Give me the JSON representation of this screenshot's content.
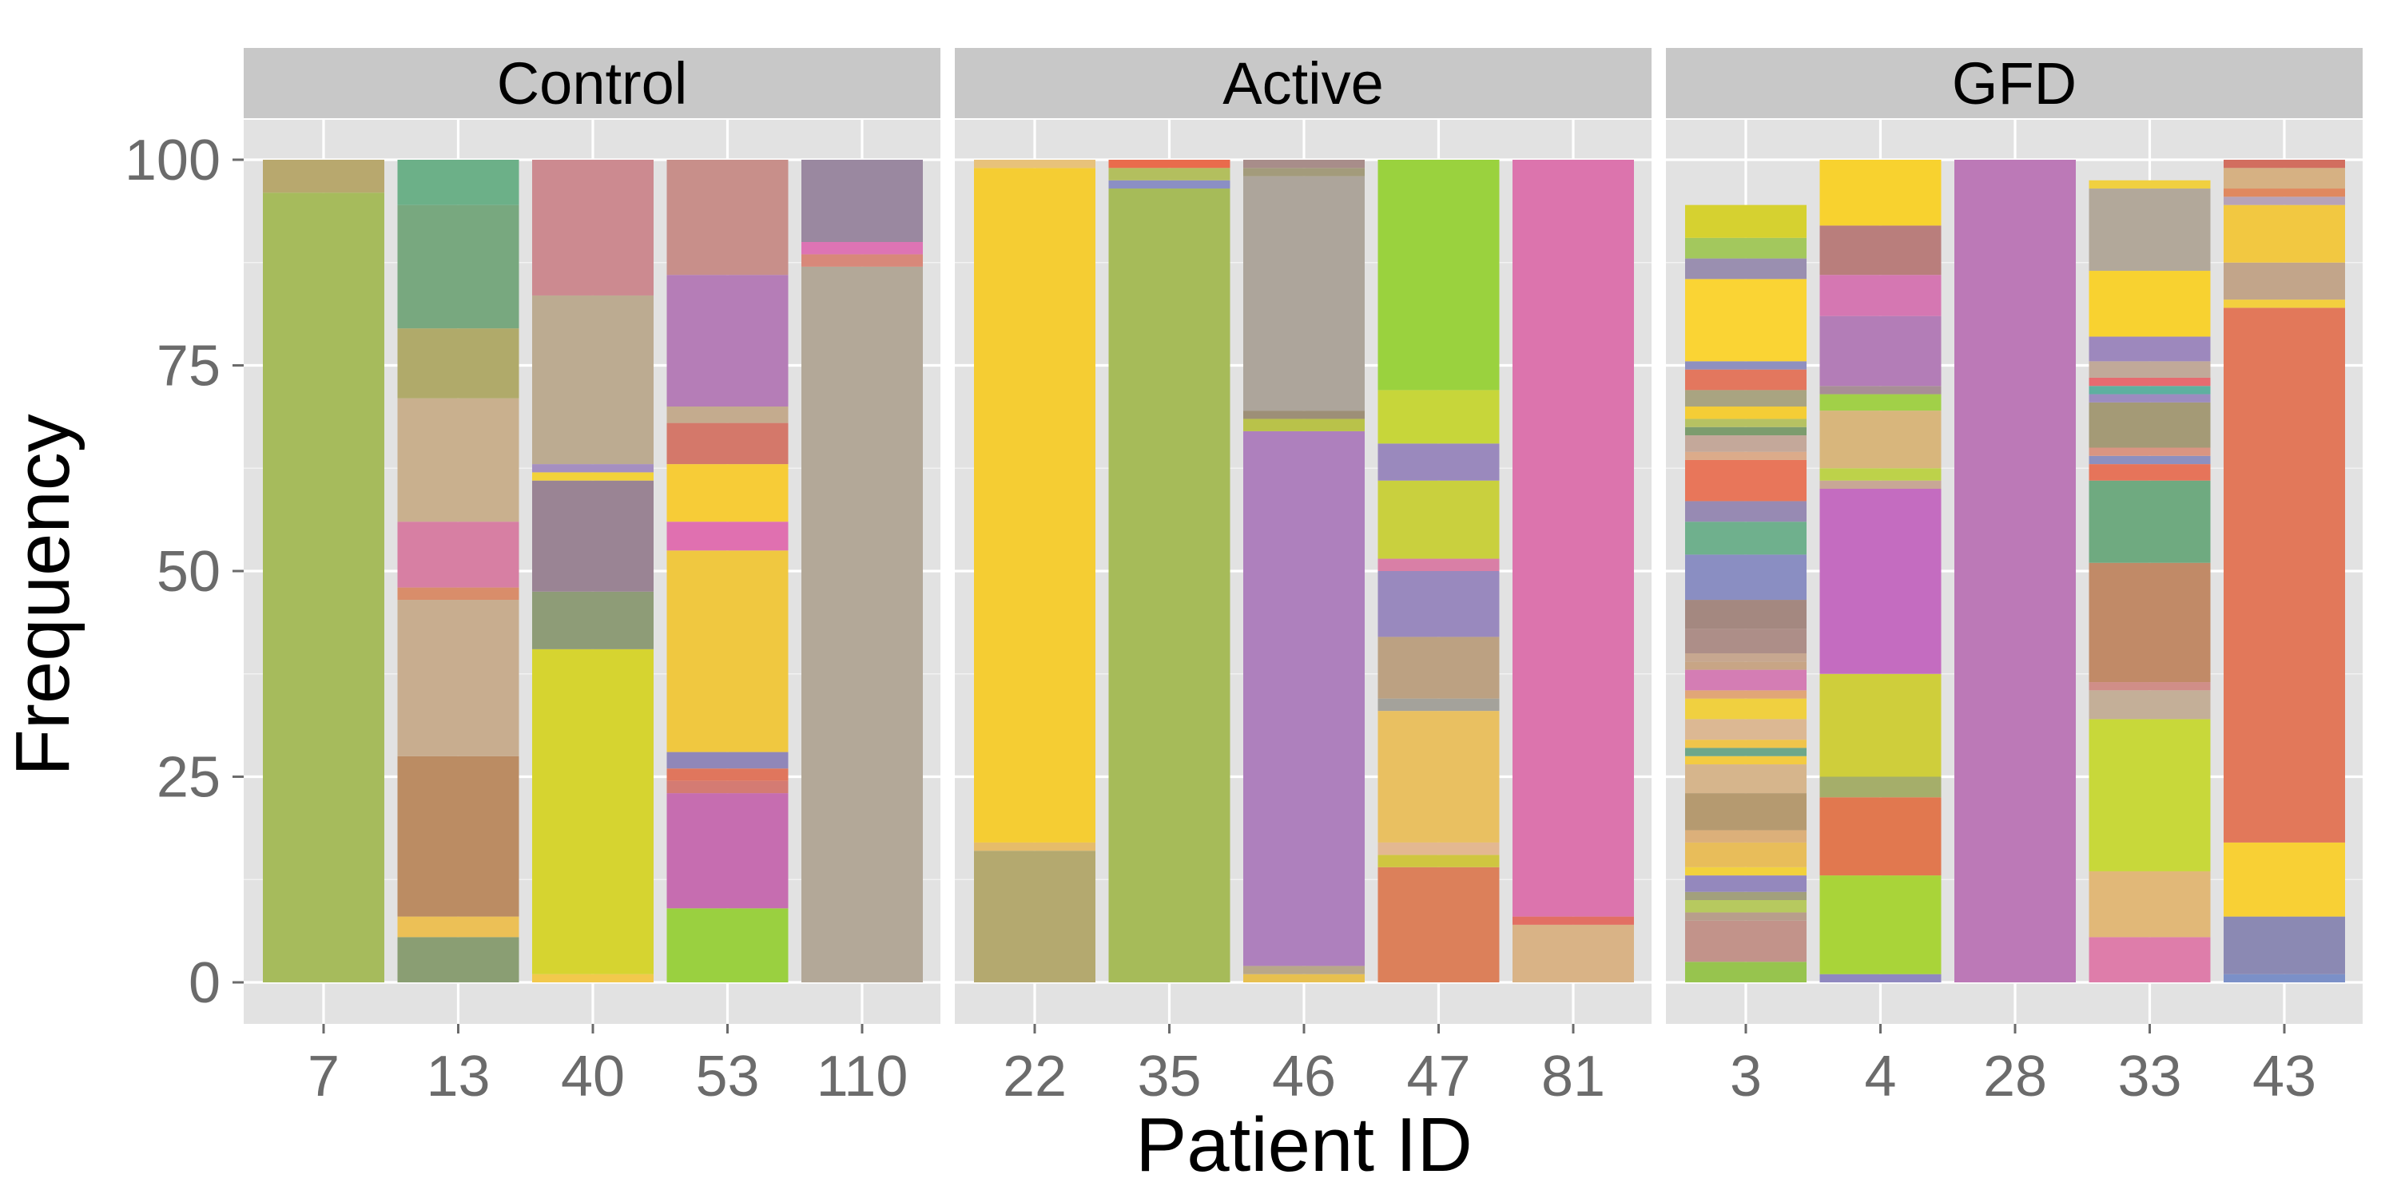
{
  "chart_data": {
    "type": "bar",
    "stacked": true,
    "title": "",
    "xlabel": "Patient ID",
    "ylabel": "Frequency",
    "ylim": [
      0,
      100
    ],
    "yticks": [
      "0",
      "25",
      "50",
      "75",
      "100"
    ],
    "grid": true,
    "legend": "none",
    "colors": {
      "panel_background": "#e2e2e2",
      "strip_background": "#c8c8c8",
      "gridline": "#ffffff",
      "tick_label": "#6b6b6b"
    },
    "facets": [
      {
        "label": "Control",
        "bars": [
          {
            "category": "7",
            "segments": [
              {
                "value": 96,
                "color": "#a6bb5c"
              },
              {
                "value": 4,
                "color": "#b8a86e"
              }
            ]
          },
          {
            "category": "13",
            "segments": [
              {
                "value": 5.5,
                "color": "#8a9e73"
              },
              {
                "value": 2.5,
                "color": "#ecc056"
              },
              {
                "value": 19.5,
                "color": "#bb8c63"
              },
              {
                "value": 19,
                "color": "#c8ad8f"
              },
              {
                "value": 1.5,
                "color": "#d98d6a"
              },
              {
                "value": 8,
                "color": "#d77fa3"
              },
              {
                "value": 15,
                "color": "#c9b08e"
              },
              {
                "value": 8.5,
                "color": "#b0aa6a"
              },
              {
                "value": 15,
                "color": "#78a87f"
              },
              {
                "value": 5.5,
                "color": "#6cb088"
              }
            ]
          },
          {
            "category": "40",
            "segments": [
              {
                "value": 1,
                "color": "#f2c94c"
              },
              {
                "value": 39.5,
                "color": "#d6d430"
              },
              {
                "value": 7,
                "color": "#8e9c77"
              },
              {
                "value": 13.5,
                "color": "#9a8494"
              },
              {
                "value": 1,
                "color": "#f2d23a"
              },
              {
                "value": 1,
                "color": "#a58fc1"
              },
              {
                "value": 20.5,
                "color": "#bcab91"
              },
              {
                "value": 16.5,
                "color": "#cc8a90"
              }
            ]
          },
          {
            "category": "53",
            "segments": [
              {
                "value": 9,
                "color": "#9ad040"
              },
              {
                "value": 14,
                "color": "#c66db0"
              },
              {
                "value": 1.5,
                "color": "#d47b73"
              },
              {
                "value": 1.5,
                "color": "#e0765d"
              },
              {
                "value": 2,
                "color": "#9087b9"
              },
              {
                "value": 24.5,
                "color": "#f0c840"
              },
              {
                "value": 3.5,
                "color": "#e070b0"
              },
              {
                "value": 7,
                "color": "#f7cc37"
              },
              {
                "value": 5,
                "color": "#d4786a"
              },
              {
                "value": 2,
                "color": "#c4ab8e"
              },
              {
                "value": 16,
                "color": "#b57db7"
              },
              {
                "value": 14,
                "color": "#c88f8a"
              }
            ]
          },
          {
            "category": "110",
            "segments": [
              {
                "value": 87,
                "color": "#b3a898"
              },
              {
                "value": 1.5,
                "color": "#d8887a"
              },
              {
                "value": 1.5,
                "color": "#dd74b4"
              },
              {
                "value": 10,
                "color": "#9a88a0"
              }
            ]
          }
        ]
      },
      {
        "label": "Active",
        "bars": [
          {
            "category": "22",
            "segments": [
              {
                "value": 16,
                "color": "#b4a96f"
              },
              {
                "value": 1,
                "color": "#e6bc6a"
              },
              {
                "value": 82,
                "color": "#f5cd33"
              },
              {
                "value": 1,
                "color": "#e8c27a"
              }
            ]
          },
          {
            "category": "35",
            "segments": [
              {
                "value": 96.5,
                "color": "#a6bb59"
              },
              {
                "value": 1,
                "color": "#8b8fc4"
              },
              {
                "value": 1.5,
                "color": "#b3bf5e"
              },
              {
                "value": 1,
                "color": "#e96b4c"
              }
            ]
          },
          {
            "category": "46",
            "segments": [
              {
                "value": 1,
                "color": "#e7c050"
              },
              {
                "value": 1,
                "color": "#b9a789"
              },
              {
                "value": 65,
                "color": "#ae80bd"
              },
              {
                "value": 1.5,
                "color": "#b9c24a"
              },
              {
                "value": 1,
                "color": "#9d8f77"
              },
              {
                "value": 28.5,
                "color": "#ada59b"
              },
              {
                "value": 1,
                "color": "#a39b7b"
              },
              {
                "value": 1,
                "color": "#a88d8a"
              }
            ]
          },
          {
            "category": "47",
            "segments": [
              {
                "value": 14,
                "color": "#dc805a"
              },
              {
                "value": 1.5,
                "color": "#cfc640"
              },
              {
                "value": 1.5,
                "color": "#e3b891"
              },
              {
                "value": 16,
                "color": "#e9c061"
              },
              {
                "value": 1.5,
                "color": "#a4a29b"
              },
              {
                "value": 7.5,
                "color": "#bca182"
              },
              {
                "value": 8,
                "color": "#9989be"
              },
              {
                "value": 1.5,
                "color": "#d97fa6"
              },
              {
                "value": 9.5,
                "color": "#c9d03e"
              },
              {
                "value": 4.5,
                "color": "#9a89bd"
              },
              {
                "value": 6.5,
                "color": "#c7d63a"
              },
              {
                "value": 28,
                "color": "#9ad23e"
              }
            ]
          },
          {
            "category": "81",
            "segments": [
              {
                "value": 7,
                "color": "#d9b386"
              },
              {
                "value": 1,
                "color": "#e26f63"
              },
              {
                "value": 92,
                "color": "#dc74ad"
              }
            ]
          }
        ]
      },
      {
        "label": "GFD",
        "bars": [
          {
            "category": "3",
            "segments": [
              {
                "value": 2.5,
                "color": "#97c44e"
              },
              {
                "value": 5,
                "color": "#c2938a"
              },
              {
                "value": 1,
                "color": "#b89e8c"
              },
              {
                "value": 1.5,
                "color": "#b7c95f"
              },
              {
                "value": 1,
                "color": "#a2a07c"
              },
              {
                "value": 2,
                "color": "#9488bd"
              },
              {
                "value": 1,
                "color": "#f2d13d"
              },
              {
                "value": 3,
                "color": "#e8bd5a"
              },
              {
                "value": 1.5,
                "color": "#dcb07a"
              },
              {
                "value": 4.5,
                "color": "#b59a70"
              },
              {
                "value": 3.5,
                "color": "#d6b58c"
              },
              {
                "value": 1,
                "color": "#f3cb42"
              },
              {
                "value": 1,
                "color": "#6ea78a"
              },
              {
                "value": 1,
                "color": "#f0c44b"
              },
              {
                "value": 2.5,
                "color": "#dcb893"
              },
              {
                "value": 2.5,
                "color": "#f0d040"
              },
              {
                "value": 1,
                "color": "#e1a677"
              },
              {
                "value": 2.5,
                "color": "#d47db4"
              },
              {
                "value": 1,
                "color": "#c8a585"
              },
              {
                "value": 1,
                "color": "#c7a790"
              },
              {
                "value": 3,
                "color": "#ad8e88"
              },
              {
                "value": 3.5,
                "color": "#a48880"
              },
              {
                "value": 5.5,
                "color": "#8a8ec2"
              },
              {
                "value": 4,
                "color": "#6fb08d"
              },
              {
                "value": 2.5,
                "color": "#978ab3"
              },
              {
                "value": 5,
                "color": "#e8765a"
              },
              {
                "value": 1,
                "color": "#dcab8a"
              },
              {
                "value": 2,
                "color": "#c4a89a"
              },
              {
                "value": 1,
                "color": "#7c9c6e"
              },
              {
                "value": 1,
                "color": "#b6c262"
              },
              {
                "value": 1.5,
                "color": "#f4cd36"
              },
              {
                "value": 2,
                "color": "#a9a481"
              },
              {
                "value": 2.5,
                "color": "#e3775e"
              },
              {
                "value": 1,
                "color": "#8f90c0"
              },
              {
                "value": 10,
                "color": "#fad434"
              },
              {
                "value": 2.5,
                "color": "#9a8fb0"
              },
              {
                "value": 2.5,
                "color": "#a3c85d"
              },
              {
                "value": 4,
                "color": "#d6d130"
              }
            ]
          },
          {
            "category": "4",
            "segments": [
              {
                "value": 1,
                "color": "#8f88c0"
              },
              {
                "value": 12,
                "color": "#a9d439"
              },
              {
                "value": 9.5,
                "color": "#e1784f"
              },
              {
                "value": 2.5,
                "color": "#a5ae6a"
              },
              {
                "value": 12.5,
                "color": "#cfce3b"
              },
              {
                "value": 22.5,
                "color": "#c46cc0"
              },
              {
                "value": 1,
                "color": "#c8a796"
              },
              {
                "value": 1.5,
                "color": "#bdd24a"
              },
              {
                "value": 7,
                "color": "#d8b67c"
              },
              {
                "value": 2,
                "color": "#a1d048"
              },
              {
                "value": 1,
                "color": "#a88e96"
              },
              {
                "value": 8.5,
                "color": "#b37db7"
              },
              {
                "value": 5,
                "color": "#d577b2"
              },
              {
                "value": 6,
                "color": "#b97e7c"
              },
              {
                "value": 8,
                "color": "#f8d22f"
              }
            ]
          },
          {
            "category": "28",
            "segments": [
              {
                "value": 100,
                "color": "#bc79b7"
              }
            ]
          },
          {
            "category": "33",
            "segments": [
              {
                "value": 5.5,
                "color": "#de7daa"
              },
              {
                "value": 8,
                "color": "#e1b878"
              },
              {
                "value": 18.5,
                "color": "#c8d83a"
              },
              {
                "value": 3.5,
                "color": "#c4af98"
              },
              {
                "value": 1,
                "color": "#d08e88"
              },
              {
                "value": 14.5,
                "color": "#c18a67"
              },
              {
                "value": 10,
                "color": "#6faa80"
              },
              {
                "value": 2,
                "color": "#e6745a"
              },
              {
                "value": 1,
                "color": "#8c90c0"
              },
              {
                "value": 1,
                "color": "#d99582"
              },
              {
                "value": 5.5,
                "color": "#a49a76"
              },
              {
                "value": 1,
                "color": "#9c8cc0"
              },
              {
                "value": 1,
                "color": "#5eb0a0"
              },
              {
                "value": 1,
                "color": "#e66b70"
              },
              {
                "value": 2,
                "color": "#c1a999"
              },
              {
                "value": 3,
                "color": "#9d88bd"
              },
              {
                "value": 8,
                "color": "#f8d230"
              },
              {
                "value": 10,
                "color": "#b2a89a"
              },
              {
                "value": 1,
                "color": "#f0d040"
              }
            ]
          },
          {
            "category": "43",
            "segments": [
              {
                "value": 1,
                "color": "#7b90c8"
              },
              {
                "value": 7,
                "color": "#8b89b3"
              },
              {
                "value": 9,
                "color": "#f8d035"
              },
              {
                "value": 65,
                "color": "#e2785a"
              },
              {
                "value": 1,
                "color": "#f3cf3f"
              },
              {
                "value": 4.5,
                "color": "#c2a58a"
              },
              {
                "value": 7,
                "color": "#f2c841"
              },
              {
                "value": 1,
                "color": "#b7a3b8"
              },
              {
                "value": 1,
                "color": "#e0885f"
              },
              {
                "value": 2.5,
                "color": "#d6b183"
              },
              {
                "value": 1,
                "color": "#d26e5f"
              }
            ]
          }
        ]
      }
    ]
  }
}
